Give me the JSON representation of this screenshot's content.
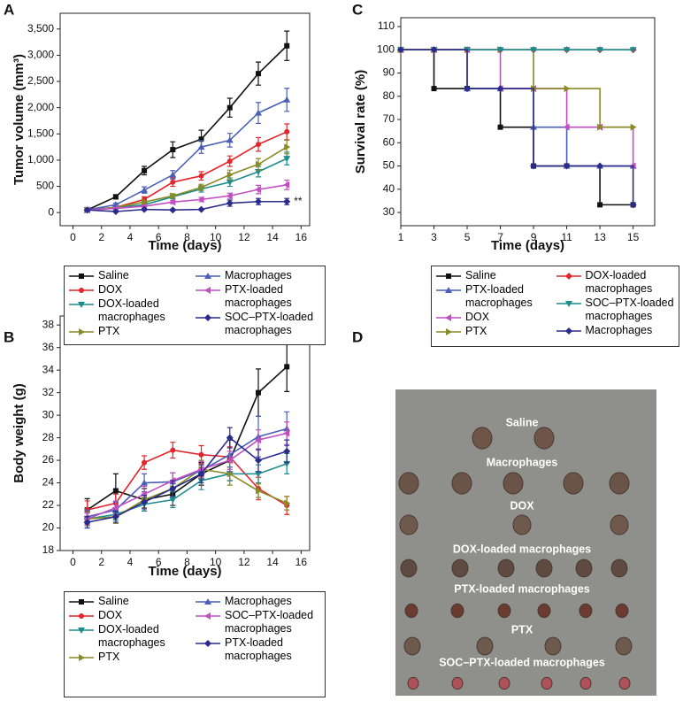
{
  "chart_data": [
    {
      "panel": "A",
      "type": "line",
      "xlabel": "Time (days)",
      "ylabel": "Tumor volume (mm³)",
      "x": [
        1,
        3,
        5,
        7,
        9,
        11,
        13,
        15
      ],
      "xlim": [
        -0.9,
        16.6
      ],
      "xticks": [
        0,
        2,
        4,
        6,
        8,
        10,
        12,
        14,
        16
      ],
      "ylim": [
        -250,
        3800
      ],
      "yticks": [
        0,
        500,
        {
          "value": 1000,
          "label": "1,000"
        },
        {
          "value": 1500,
          "label": "1,500"
        },
        {
          "value": 2000,
          "label": "2,000"
        },
        {
          "value": 2500,
          "label": "2,500"
        },
        {
          "value": 3000,
          "label": "3,000"
        },
        {
          "value": 3500,
          "label": "3,500"
        }
      ],
      "annotation": "**",
      "series": [
        {
          "name": "Saline",
          "color": "#111111",
          "marker": "square",
          "values": [
            50,
            300,
            800,
            1200,
            1400,
            2000,
            2650,
            3180
          ],
          "errors": [
            20,
            40,
            80,
            150,
            170,
            180,
            220,
            280
          ]
        },
        {
          "name": "DOX",
          "color": "#e3262b",
          "marker": "circle",
          "values": [
            50,
            100,
            250,
            580,
            700,
            980,
            1300,
            1540
          ],
          "errors": [
            15,
            30,
            50,
            80,
            80,
            100,
            130,
            150
          ]
        },
        {
          "name": "DOX-loaded macrophages",
          "color": "#1c8c8c",
          "marker": "tri-down",
          "values": [
            50,
            100,
            150,
            300,
            450,
            580,
            780,
            1030
          ],
          "errors": [
            15,
            20,
            30,
            40,
            60,
            80,
            100,
            120
          ]
        },
        {
          "name": "PTX",
          "color": "#8a8a26",
          "marker": "tri-right",
          "values": [
            50,
            100,
            200,
            320,
            480,
            720,
            920,
            1250
          ],
          "errors": [
            15,
            20,
            30,
            40,
            60,
            90,
            110,
            130
          ]
        },
        {
          "name": "Macrophages",
          "color": "#4a5fb8",
          "marker": "tri-up",
          "values": [
            50,
            150,
            430,
            720,
            1250,
            1380,
            1900,
            2150
          ],
          "errors": [
            20,
            30,
            60,
            80,
            120,
            130,
            200,
            220
          ]
        },
        {
          "name": "PTX-loaded macrophages",
          "color": "#c24fc2",
          "marker": "tri-left",
          "values": [
            50,
            80,
            120,
            200,
            250,
            320,
            440,
            530
          ],
          "errors": [
            15,
            15,
            20,
            30,
            40,
            50,
            80,
            90
          ]
        },
        {
          "name": "SOC–PTX-loaded macrophages",
          "color": "#2b2b8c",
          "marker": "diamond",
          "values": [
            50,
            20,
            60,
            50,
            60,
            180,
            210,
            210
          ],
          "errors": [
            15,
            10,
            15,
            15,
            15,
            60,
            60,
            60
          ]
        }
      ]
    },
    {
      "panel": "B",
      "type": "line",
      "xlabel": "Time (days)",
      "ylabel": "Body weight (g)",
      "x": [
        1,
        3,
        5,
        7,
        9,
        11,
        13,
        15
      ],
      "xlim": [
        -0.9,
        16.6
      ],
      "xticks": [
        0,
        2,
        4,
        6,
        8,
        10,
        12,
        14,
        16
      ],
      "ylim": [
        18,
        38.8
      ],
      "yticks": [
        18,
        20,
        22,
        24,
        26,
        28,
        30,
        32,
        34,
        36,
        38
      ],
      "series": [
        {
          "name": "Saline",
          "color": "#111111",
          "marker": "square",
          "values": [
            21.6,
            23.3,
            22.5,
            23.0,
            24.8,
            26.0,
            32.0,
            34.3
          ],
          "errors": [
            1,
            1.5,
            1,
            1,
            1,
            1.8,
            2.1,
            2.2
          ]
        },
        {
          "name": "DOX",
          "color": "#e3262b",
          "marker": "circle",
          "values": [
            21.6,
            22.2,
            25.8,
            26.9,
            26.5,
            26.3,
            23.5,
            22.0
          ],
          "errors": [
            0.8,
            0.8,
            0.6,
            0.7,
            0.8,
            0.9,
            1,
            0.8
          ]
        },
        {
          "name": "DOX-loaded macrophages",
          "color": "#1c8c8c",
          "marker": "tri-down",
          "values": [
            20.8,
            21.2,
            22.1,
            22.5,
            24.2,
            24.8,
            24.8,
            25.7
          ],
          "errors": [
            0.5,
            0.5,
            0.6,
            0.7,
            0.8,
            0.6,
            0.8,
            0.9
          ]
        },
        {
          "name": "PTX",
          "color": "#8a8a26",
          "marker": "tri-right",
          "values": [
            20.8,
            21.0,
            22.5,
            23.5,
            25.2,
            24.8,
            23.3,
            22.2
          ],
          "errors": [
            0.6,
            0.6,
            0.7,
            0.7,
            0.8,
            1,
            0.6,
            0.6
          ]
        },
        {
          "name": "Macrophages",
          "color": "#4a5fb8",
          "marker": "tri-up",
          "values": [
            21.0,
            21.6,
            24.0,
            24.1,
            25.1,
            26.5,
            28.1,
            28.8
          ],
          "errors": [
            0.6,
            0.7,
            0.8,
            0.8,
            0.8,
            1.5,
            1.8,
            1.5
          ]
        },
        {
          "name": "SOC–PTX-loaded macrophages",
          "color": "#c24fc2",
          "marker": "tri-left",
          "values": [
            20.8,
            21.8,
            23.0,
            24.2,
            25.2,
            26.0,
            27.8,
            28.4
          ],
          "errors": [
            0.5,
            0.6,
            0.7,
            0.7,
            0.7,
            0.8,
            0.9,
            1
          ]
        },
        {
          "name": "PTX-loaded macrophages",
          "color": "#2b2b8c",
          "marker": "diamond",
          "values": [
            20.5,
            21.0,
            22.3,
            23.5,
            24.8,
            28.0,
            26.0,
            26.8
          ],
          "errors": [
            0.5,
            0.5,
            0.6,
            0.7,
            0.8,
            0.9,
            1,
            1
          ]
        }
      ]
    },
    {
      "panel": "C",
      "type": "step",
      "xlabel": "Time (days)",
      "ylabel": "Survival rate (%)",
      "x": [
        1,
        3,
        5,
        7,
        9,
        11,
        13,
        15
      ],
      "xlim": [
        1,
        16.3
      ],
      "xticks": [
        1,
        3,
        5,
        7,
        9,
        11,
        13,
        15
      ],
      "ylim": [
        24.3,
        113.8
      ],
      "yticks": [
        30,
        40,
        50,
        60,
        70,
        80,
        90,
        100,
        110
      ],
      "series": [
        {
          "name": "Saline",
          "color": "#111111",
          "marker": "square",
          "values": [
            100,
            83.3,
            83.3,
            66.7,
            50,
            50,
            33.3,
            33.3
          ]
        },
        {
          "name": "PTX-loaded macrophages",
          "color": "#4a5fb8",
          "marker": "tri-up",
          "values": [
            100,
            100,
            83.3,
            83.3,
            66.7,
            50,
            50,
            50
          ]
        },
        {
          "name": "DOX",
          "color": "#c24fc2",
          "marker": "tri-left",
          "values": [
            100,
            100,
            100,
            83.3,
            83.3,
            66.7,
            66.7,
            50
          ]
        },
        {
          "name": "PTX",
          "color": "#8a8a26",
          "marker": "tri-right",
          "values": [
            100,
            100,
            100,
            100,
            83.3,
            83.3,
            66.7,
            66.7
          ]
        },
        {
          "name": "DOX-loaded macrophages",
          "color": "#e3262b",
          "marker": "diamond",
          "values": [
            100,
            100,
            100,
            100,
            100,
            100,
            100,
            100
          ]
        },
        {
          "name": "SOC–PTX-loaded macrophages",
          "color": "#1c8c8c",
          "marker": "tri-down",
          "values": [
            100,
            100,
            100,
            100,
            100,
            100,
            100,
            100
          ]
        },
        {
          "name": "Macrophages",
          "color": "#2b2b8c",
          "marker": "diamond",
          "values": [
            100,
            100,
            83.3,
            83.3,
            50,
            50,
            50,
            33.3
          ]
        }
      ]
    }
  ],
  "panel_d": {
    "panel": "D",
    "labels": [
      "Saline",
      "Macrophages",
      "DOX",
      "DOX-loaded macrophages",
      "PTX-loaded macrophages",
      "PTX",
      "SOC–PTX-loaded macrophages"
    ]
  }
}
